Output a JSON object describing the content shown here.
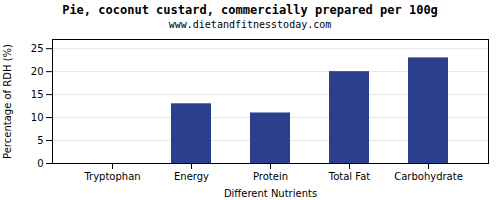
{
  "chart_data": {
    "type": "bar",
    "title": "Pie, coconut custard, commercially prepared per 100g",
    "subtitle": "www.dietandfitnesstoday.com",
    "categories": [
      "Tryptophan",
      "Energy",
      "Protein",
      "Total Fat",
      "Carbohydrate"
    ],
    "values": [
      0.0,
      13.0,
      11.0,
      20.0,
      23.0
    ],
    "color": "#2b3f8c",
    "xlabel": "Different Nutrients",
    "ylabel": "Percentage of RDH (%)",
    "ylim": [
      0,
      27
    ],
    "yticks": [
      0,
      5,
      10,
      15,
      20,
      25
    ],
    "grid": true
  }
}
